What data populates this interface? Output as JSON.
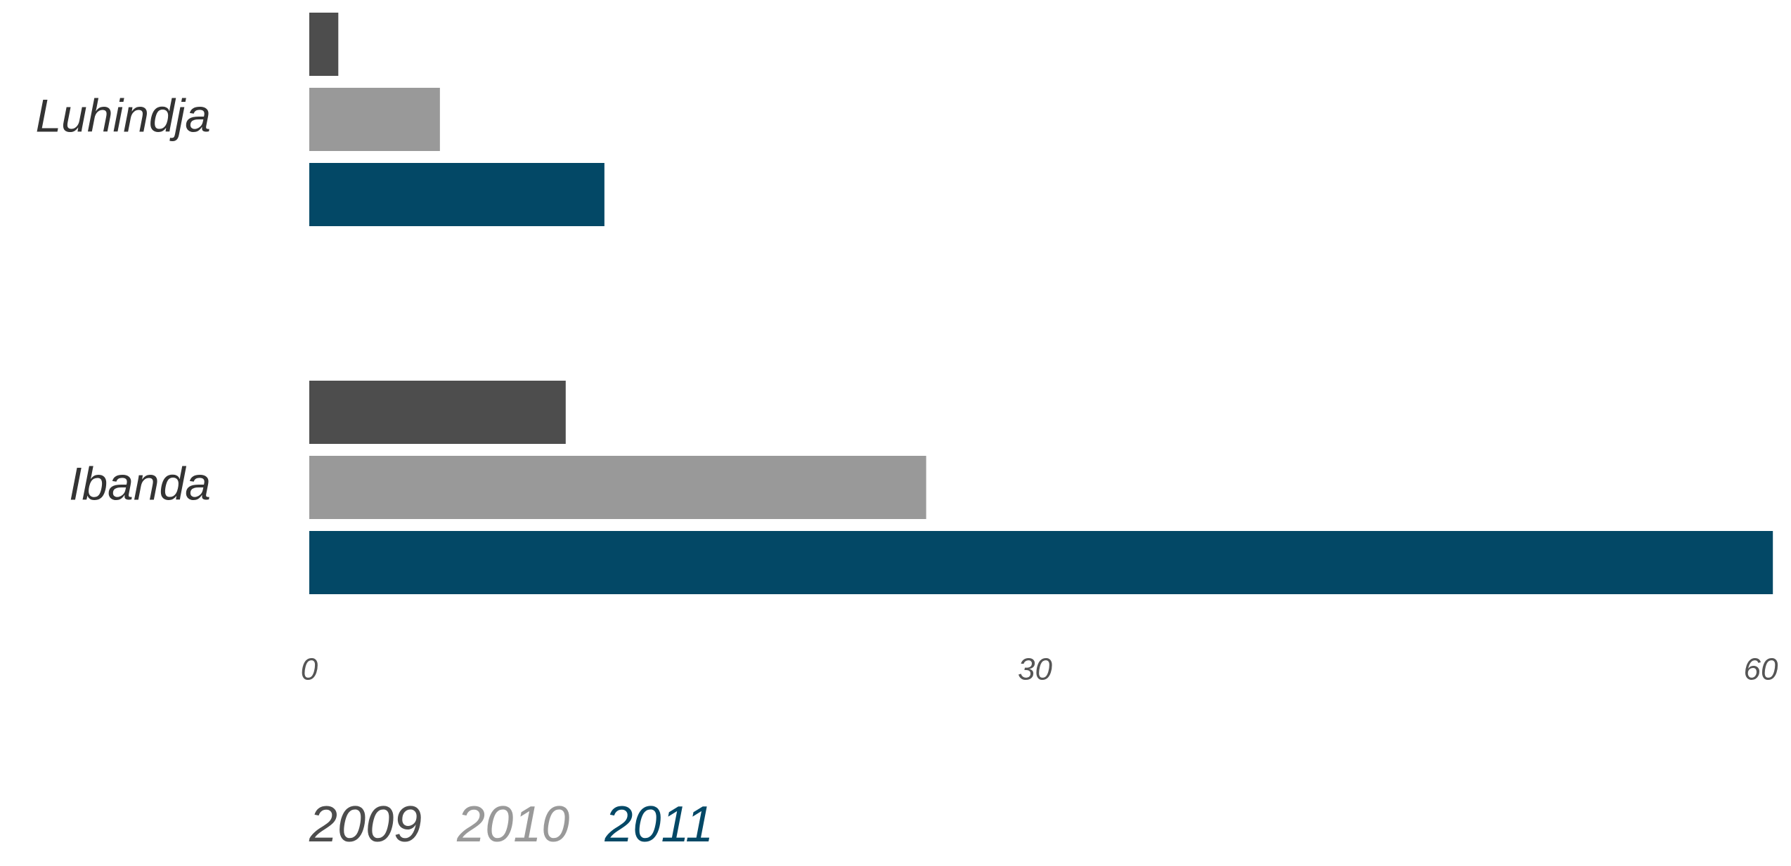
{
  "chart_data": {
    "type": "bar",
    "orientation": "horizontal",
    "categories": [
      "Luhindja",
      "Ibanda"
    ],
    "series": [
      {
        "name": "2009",
        "color": "#4d4d4d",
        "values": [
          1.2,
          10.6
        ]
      },
      {
        "name": "2010",
        "color": "#999999",
        "values": [
          5.4,
          25.5
        ]
      },
      {
        "name": "2011",
        "color": "#034866",
        "values": [
          12.2,
          60.5
        ]
      }
    ],
    "xticks": [
      "0",
      "30",
      "60"
    ],
    "xlim": [
      0,
      60
    ],
    "grid": false,
    "legend_position": "bottom-left"
  }
}
